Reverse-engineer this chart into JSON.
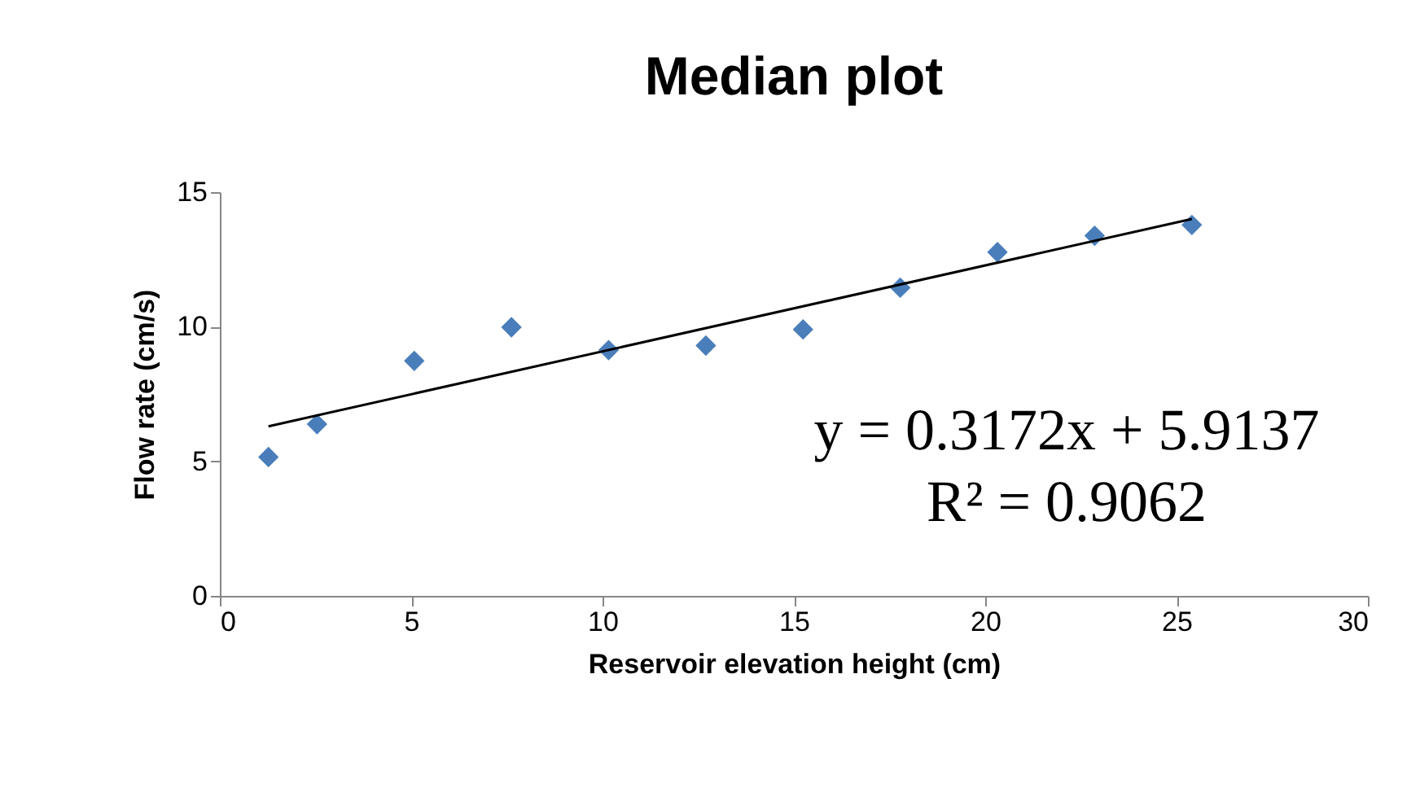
{
  "chart_data": {
    "type": "scatter",
    "title": "Median plot",
    "xlabel": "Reservoir elevation height (cm)",
    "ylabel": "Flow rate (cm/s)",
    "x": [
      1.27,
      2.54,
      5.08,
      7.62,
      10.16,
      12.7,
      15.24,
      17.78,
      20.32,
      22.86,
      25.4
    ],
    "series": [
      {
        "color": "#4a7ebb",
        "marker": "diamond",
        "values": [
          5.16,
          6.38,
          8.73,
          9.98,
          9.13,
          9.3,
          9.9,
          11.45,
          12.77,
          13.38,
          13.78
        ]
      },
      {
        "type": "line",
        "color": "#000000",
        "marker": "none",
        "x": [
          1.27,
          25.4
        ],
        "values": [
          6.3,
          14.0
        ]
      }
    ],
    "annotations": [
      "y = 0.3172x + 5.9137",
      "R² = 0.9062"
    ],
    "xlim": [
      0,
      30
    ],
    "xticks": [
      0,
      5,
      10,
      15,
      20,
      25,
      30
    ],
    "ylim": [
      0,
      15
    ],
    "yticks": [
      0,
      5,
      10,
      15
    ],
    "grid": false
  }
}
